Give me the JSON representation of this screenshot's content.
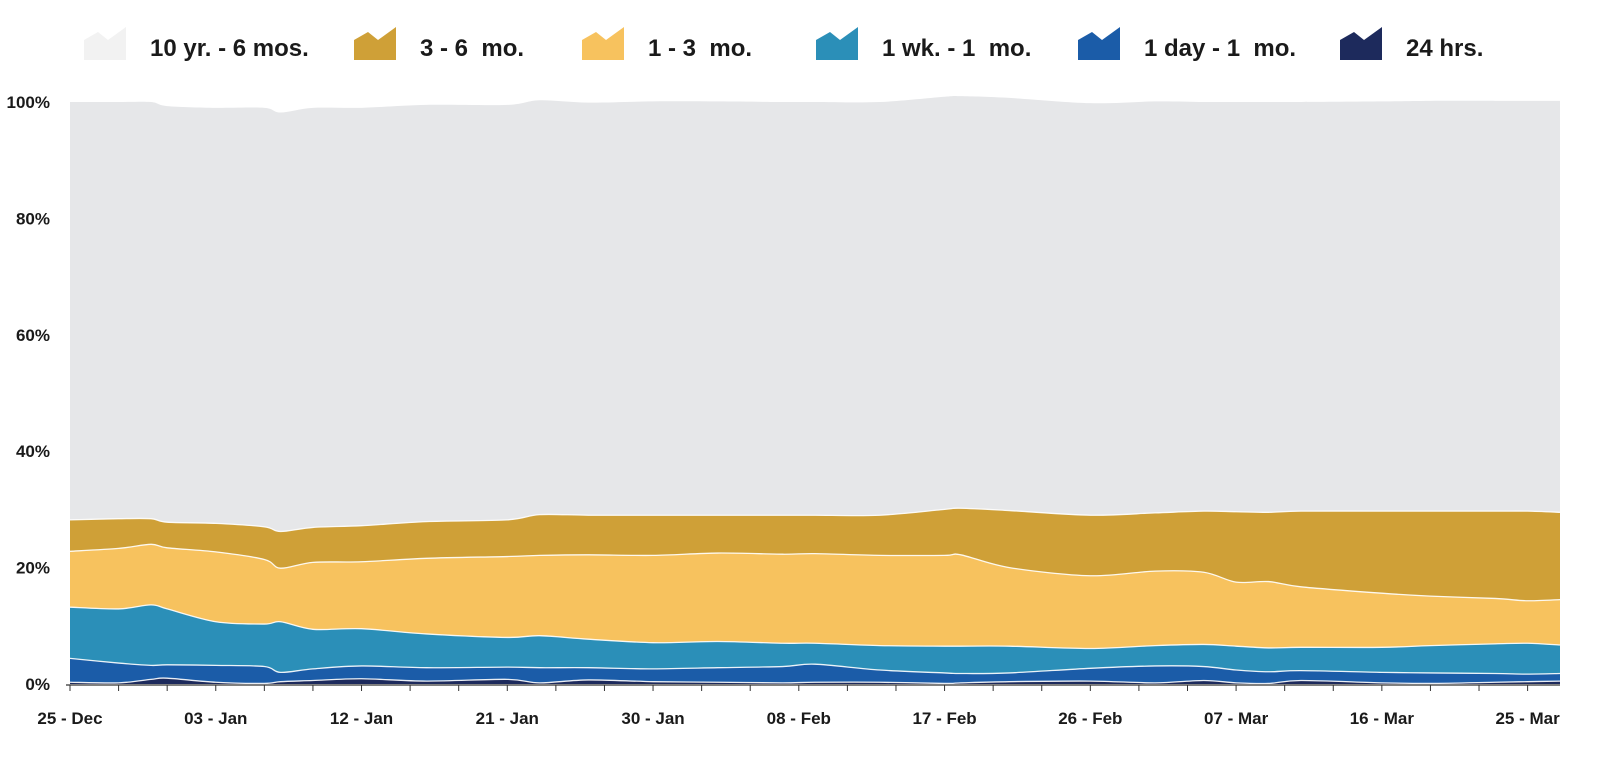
{
  "chart_data": {
    "type": "area",
    "stacking": "percent",
    "title": "",
    "xlabel": "",
    "ylabel": "",
    "ylim": [
      0,
      100
    ],
    "y_ticks": [
      "0%",
      "20%",
      "40%",
      "60%",
      "80%",
      "100%"
    ],
    "x_tick_labels": [
      "25 - Dec",
      "03 - Jan",
      "12 - Jan",
      "21 - Jan",
      "30 - Jan",
      "08 - Feb",
      "17 - Feb",
      "26 - Feb",
      "07 - Mar",
      "16 - Mar",
      "25 - Mar"
    ],
    "x_tick_day_index": [
      0,
      9,
      18,
      27,
      36,
      45,
      54,
      63,
      72,
      81,
      90
    ],
    "x_days": [
      0,
      3,
      5,
      6,
      9,
      12,
      13,
      15,
      18,
      22,
      27,
      29,
      32,
      36,
      40,
      44,
      46,
      50,
      54,
      55,
      58,
      63,
      67,
      70,
      72,
      74,
      76,
      81,
      84,
      88,
      90,
      92
    ],
    "legend_position": "top",
    "series": [
      {
        "name": "24 hrs.",
        "color": "#1d2a5c",
        "values": [
          0.3,
          0.2,
          0.8,
          1.0,
          0.3,
          0.1,
          0.4,
          0.6,
          0.9,
          0.5,
          0.8,
          0.2,
          0.7,
          0.4,
          0.3,
          0.2,
          0.3,
          0.3,
          0.1,
          0.2,
          0.4,
          0.5,
          0.2,
          0.6,
          0.2,
          0.1,
          0.6,
          0.2,
          0.1,
          0.3,
          0.4,
          0.5
        ]
      },
      {
        "name": "1 day - 1  mo.",
        "color": "#1b5ca8",
        "values": [
          4.1,
          3.4,
          2.4,
          2.3,
          2.9,
          2.9,
          1.6,
          2.0,
          2.2,
          2.3,
          2.1,
          2.6,
          2.1,
          2.2,
          2.5,
          2.8,
          3.1,
          2.1,
          1.8,
          1.6,
          1.5,
          2.2,
          2.9,
          2.4,
          2.2,
          2.0,
          1.7,
          1.8,
          1.8,
          1.5,
          1.3,
          1.3
        ]
      },
      {
        "name": "1 wk. - 1  mo.",
        "color": "#2b8fb8",
        "values": [
          8.8,
          9.3,
          10.4,
          9.6,
          7.5,
          7.3,
          8.7,
          6.8,
          6.4,
          5.8,
          5.1,
          5.5,
          4.9,
          4.5,
          4.5,
          4.0,
          3.6,
          4.2,
          4.6,
          4.7,
          4.6,
          3.4,
          3.5,
          3.8,
          4.1,
          4.1,
          4.0,
          4.3,
          4.7,
          5.1,
          5.3,
          4.9
        ]
      },
      {
        "name": "1 - 3  mo.",
        "color": "#f7c25e",
        "values": [
          9.6,
          10.4,
          10.4,
          10.5,
          12.0,
          11.1,
          9.2,
          11.5,
          11.5,
          13.0,
          13.9,
          13.8,
          14.5,
          15.0,
          15.2,
          15.3,
          15.4,
          15.5,
          15.6,
          15.7,
          13.5,
          12.5,
          12.8,
          12.4,
          11.0,
          11.4,
          10.4,
          9.3,
          8.5,
          7.8,
          7.3,
          7.8
        ]
      },
      {
        "name": "3 - 6  mo.",
        "color": "#cfa037",
        "values": [
          5.4,
          5.1,
          4.4,
          4.4,
          4.9,
          5.6,
          6.3,
          6.0,
          6.2,
          6.3,
          6.3,
          7.0,
          6.8,
          6.9,
          6.5,
          6.7,
          6.6,
          6.9,
          7.9,
          8.0,
          9.8,
          10.4,
          10.0,
          10.5,
          12.1,
          11.9,
          13.0,
          14.1,
          14.6,
          15.0,
          15.4,
          15.0
        ]
      },
      {
        "name": "10 yr. - 6 mos.",
        "color": "#e6e7e9",
        "values": [
          71.8,
          71.6,
          71.6,
          71.5,
          71.4,
          72.0,
          72.0,
          72.1,
          71.8,
          71.6,
          71.3,
          71.2,
          70.9,
          71.1,
          71.1,
          71.0,
          71.0,
          71.0,
          70.9,
          70.8,
          70.9,
          70.8,
          70.7,
          70.3,
          70.4,
          70.5,
          70.3,
          70.4,
          70.5,
          70.5,
          70.5,
          70.7
        ]
      }
    ],
    "legend": [
      {
        "label": "10 yr. - 6 mos.",
        "color": "#f2f2f2"
      },
      {
        "label": "3 - 6  mo.",
        "color": "#cfa037"
      },
      {
        "label": "1 - 3  mo.",
        "color": "#f7c25e"
      },
      {
        "label": "1 wk. - 1  mo.",
        "color": "#2b8fb8"
      },
      {
        "label": "1 day - 1  mo.",
        "color": "#1b5ca8"
      },
      {
        "label": "24 hrs.",
        "color": "#1d2a5c"
      }
    ]
  }
}
